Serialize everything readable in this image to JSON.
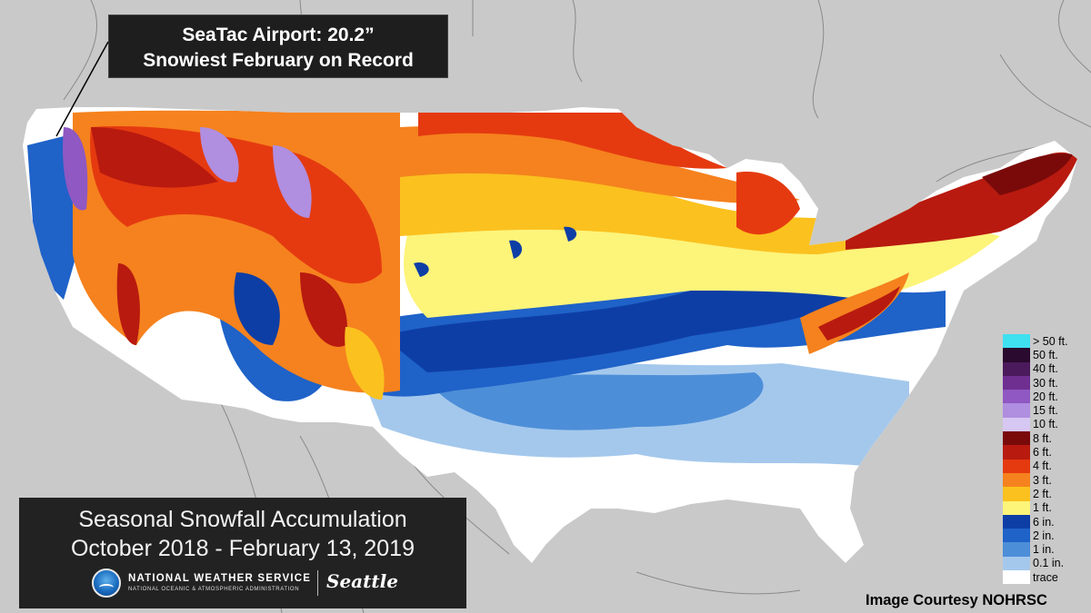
{
  "callout": {
    "line1": "SeaTac Airport: 20.2”",
    "line2": "Snowiest February on Record"
  },
  "title": {
    "line1": "Seasonal Snowfall Accumulation",
    "line2": "October 2018 - February 13, 2019"
  },
  "agency": {
    "name": "NATIONAL WEATHER SERVICE",
    "subname": "NATIONAL OCEANIC & ATMOSPHERIC ADMINISTRATION",
    "office": "Seattle",
    "logo_icon": "noaa-logo-icon"
  },
  "legend": [
    {
      "label": "> 50 ft.",
      "color": "#3fe0f0"
    },
    {
      "label": "50 ft.",
      "color": "#2a0a2e"
    },
    {
      "label": "40 ft.",
      "color": "#4b1a5c"
    },
    {
      "label": "30 ft.",
      "color": "#6e2f91"
    },
    {
      "label": "20 ft.",
      "color": "#8f58c2"
    },
    {
      "label": "15 ft.",
      "color": "#b08ee0"
    },
    {
      "label": "10 ft.",
      "color": "#d6c8f2"
    },
    {
      "label": "8 ft.",
      "color": "#7a0a0a"
    },
    {
      "label": "6 ft.",
      "color": "#b81a0f"
    },
    {
      "label": "4 ft.",
      "color": "#e53a10"
    },
    {
      "label": "3 ft.",
      "color": "#f5821e"
    },
    {
      "label": "2 ft.",
      "color": "#fbc11f"
    },
    {
      "label": "1 ft.",
      "color": "#fdf47a"
    },
    {
      "label": "6 in.",
      "color": "#0d3ea6"
    },
    {
      "label": "2 in.",
      "color": "#1f62c8"
    },
    {
      "label": "1 in.",
      "color": "#4d8ed8"
    },
    {
      "label": "0.1 in.",
      "color": "#a4c8ec"
    },
    {
      "label": "trace",
      "color": "#ffffff"
    }
  ],
  "courtesy": "Image Courtesy NOHRSC"
}
